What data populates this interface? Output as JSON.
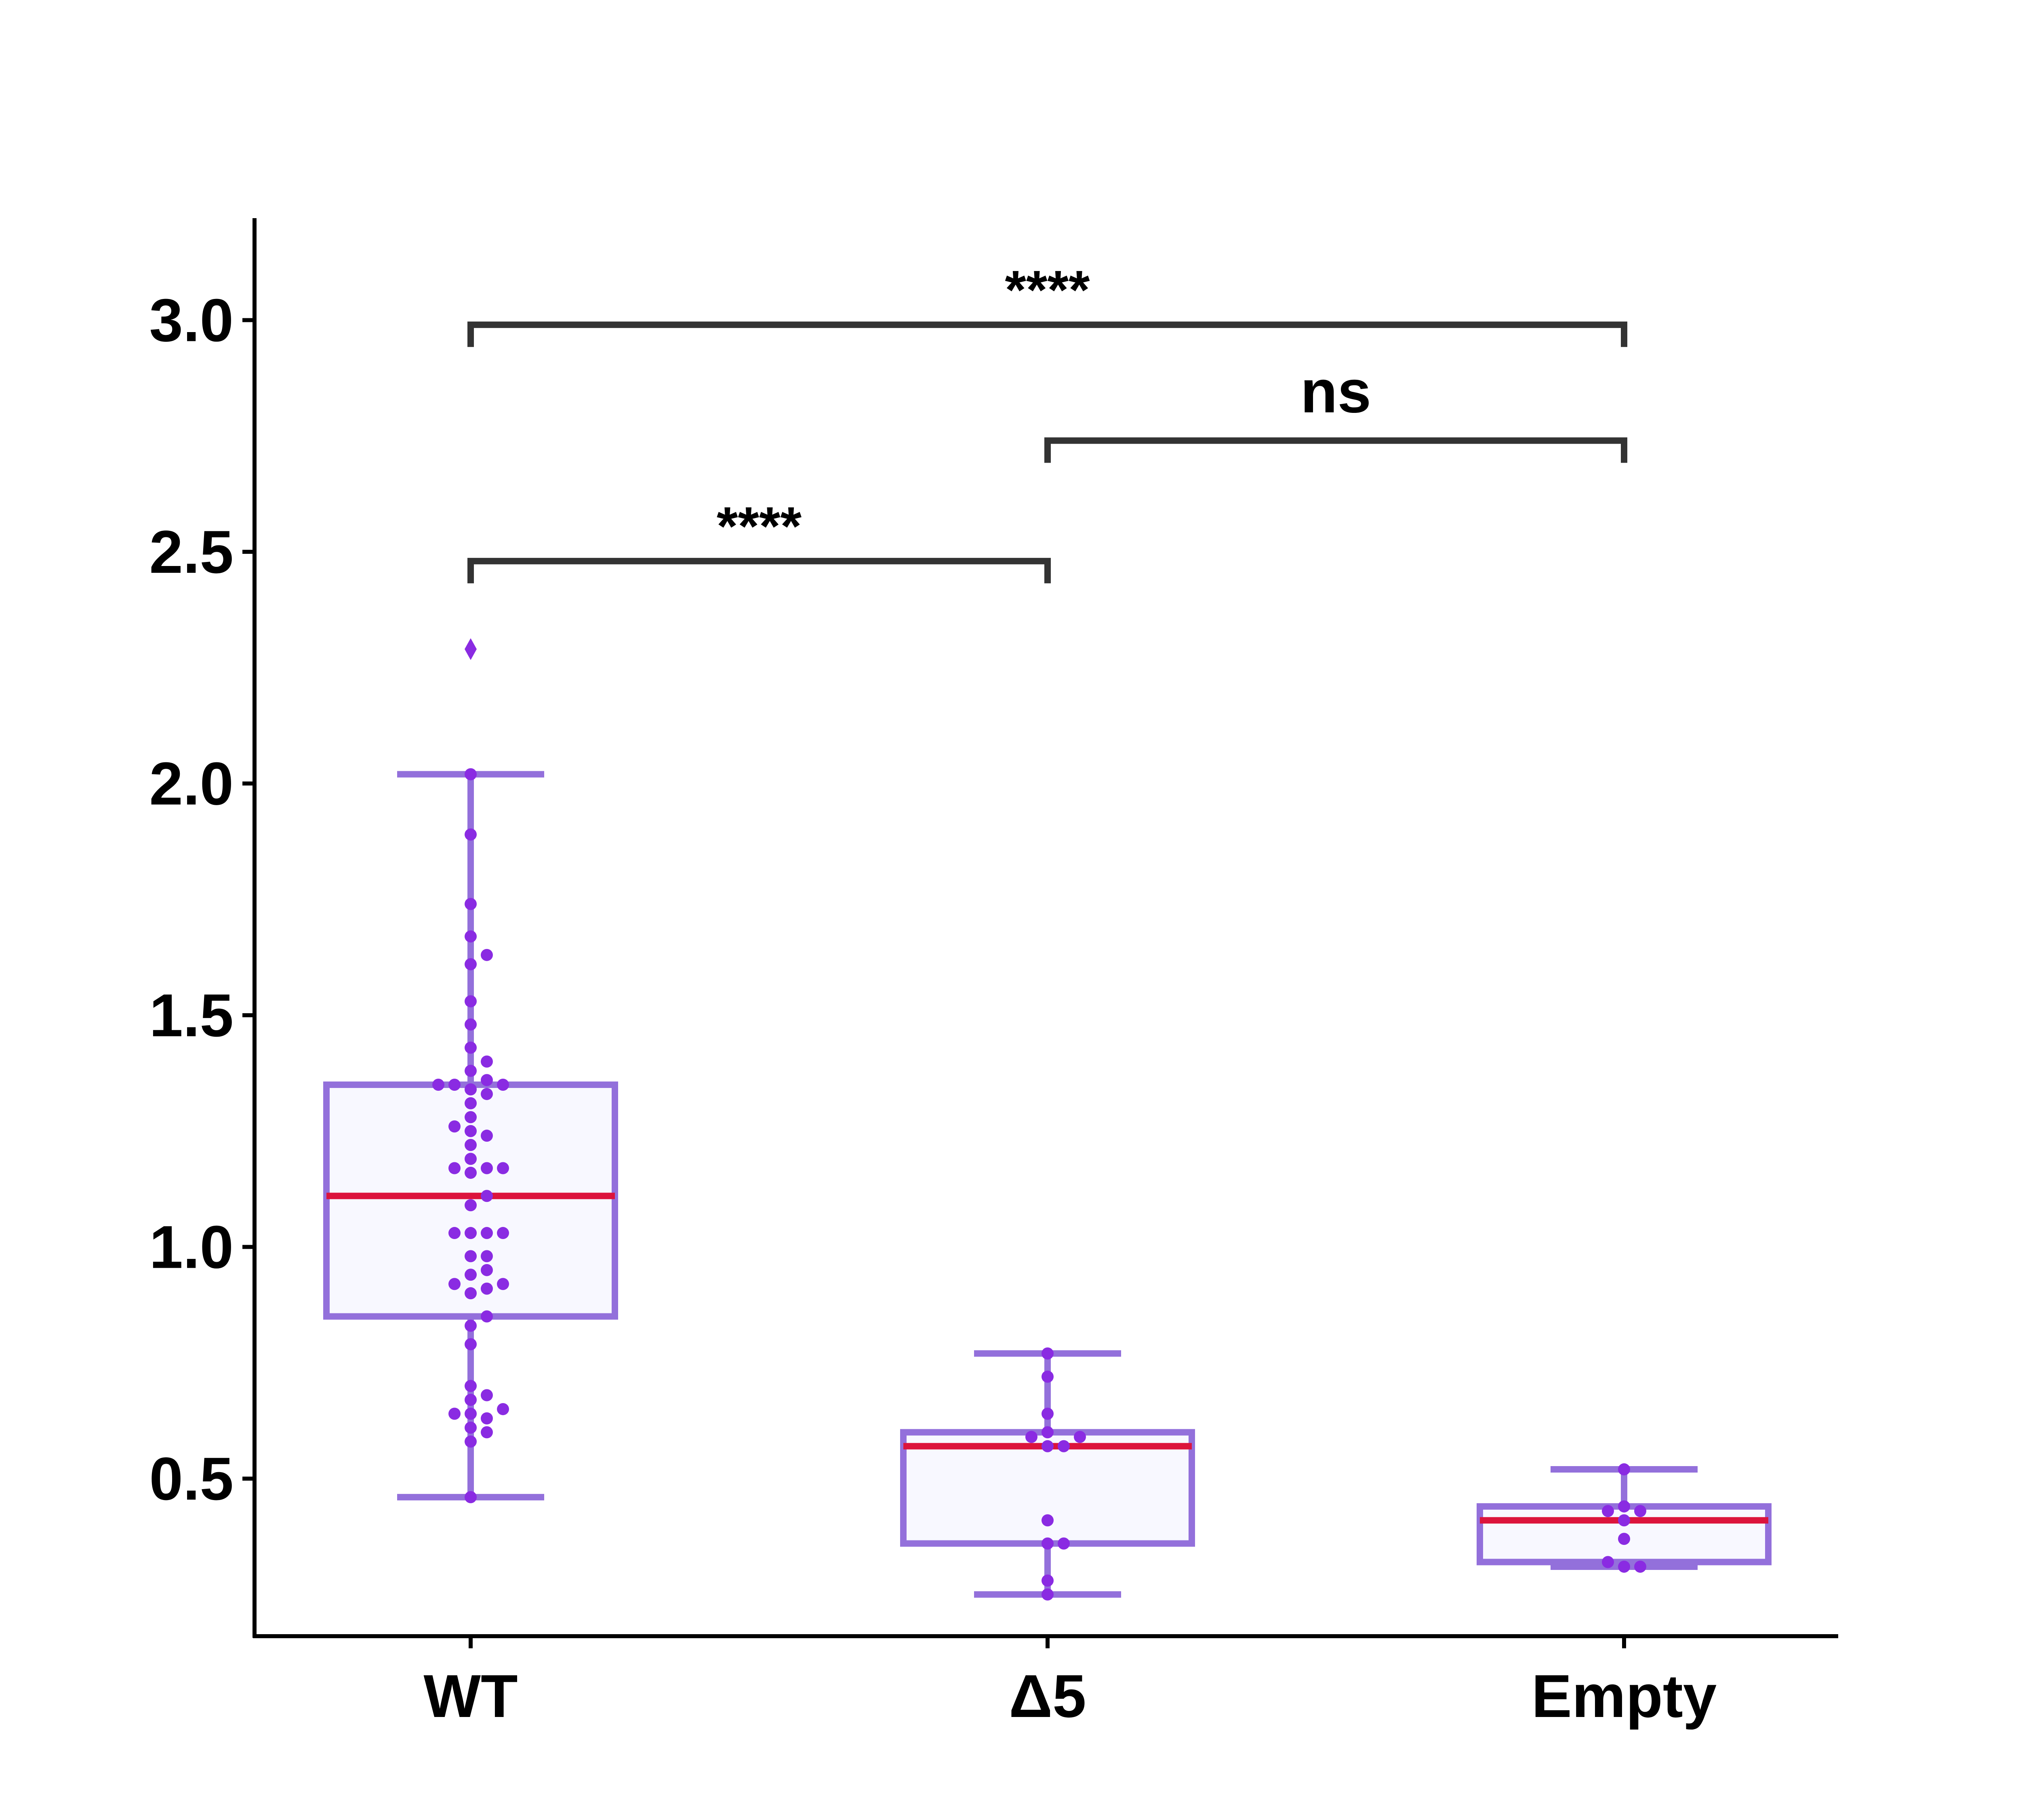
{
  "chart_data": {
    "type": "box",
    "title": "",
    "xlabel": "",
    "ylabel": "",
    "ylim": [
      0.16,
      3.22
    ],
    "yticks": [
      0.5,
      1.0,
      1.5,
      2.0,
      2.5,
      3.0
    ],
    "ytick_labels": [
      "0.5",
      "1.0",
      "1.5",
      "2.0",
      "2.5",
      "3.0"
    ],
    "categories": [
      "WT",
      "Δ5",
      "Empty"
    ],
    "grid": false,
    "legend": "none",
    "colors": {
      "box_edge": "#9370DB",
      "box_fill": "#F8F8FF",
      "median": "#DC143C",
      "points": "#8A2BE2",
      "outlier": "#8A2BE2",
      "axis": "#000000",
      "bracket": "#333333"
    },
    "boxes": [
      {
        "category": "WT",
        "q1": 0.85,
        "median": 1.11,
        "q3": 1.35,
        "whisker_low": 0.46,
        "whisker_high": 2.02,
        "outliers": [
          2.29
        ]
      },
      {
        "category": "Δ5",
        "q1": 0.36,
        "median": 0.57,
        "q3": 0.6,
        "whisker_low": 0.25,
        "whisker_high": 0.77,
        "outliers": []
      },
      {
        "category": "Empty",
        "q1": 0.32,
        "median": 0.41,
        "q3": 0.44,
        "whisker_low": 0.31,
        "whisker_high": 0.52,
        "outliers": []
      }
    ],
    "points": [
      {
        "category": "WT",
        "values": [
          0.46,
          0.58,
          0.6,
          0.61,
          0.63,
          0.64,
          0.64,
          0.65,
          0.67,
          0.68,
          0.7,
          0.79,
          0.83,
          0.85,
          0.9,
          0.91,
          0.92,
          0.92,
          0.94,
          0.95,
          0.98,
          0.98,
          1.03,
          1.03,
          1.03,
          1.03,
          1.09,
          1.11,
          1.16,
          1.17,
          1.17,
          1.17,
          1.19,
          1.22,
          1.24,
          1.25,
          1.26,
          1.28,
          1.31,
          1.33,
          1.34,
          1.35,
          1.35,
          1.35,
          1.36,
          1.38,
          1.4,
          1.43,
          1.48,
          1.53,
          1.61,
          1.63,
          1.67,
          1.74,
          1.89,
          2.02
        ]
      },
      {
        "category": "Δ5",
        "values": [
          0.25,
          0.28,
          0.36,
          0.36,
          0.41,
          0.57,
          0.57,
          0.59,
          0.59,
          0.6,
          0.64,
          0.72,
          0.77
        ]
      },
      {
        "category": "Empty",
        "values": [
          0.31,
          0.31,
          0.32,
          0.37,
          0.41,
          0.43,
          0.43,
          0.44,
          0.52
        ]
      }
    ],
    "annotations": [
      {
        "from": "WT",
        "to": "Δ5",
        "y": 2.48,
        "label": "****"
      },
      {
        "from": "Δ5",
        "to": "Empty",
        "y": 2.74,
        "label": "ns"
      },
      {
        "from": "WT",
        "to": "Empty",
        "y": 2.99,
        "label": "****"
      }
    ]
  }
}
